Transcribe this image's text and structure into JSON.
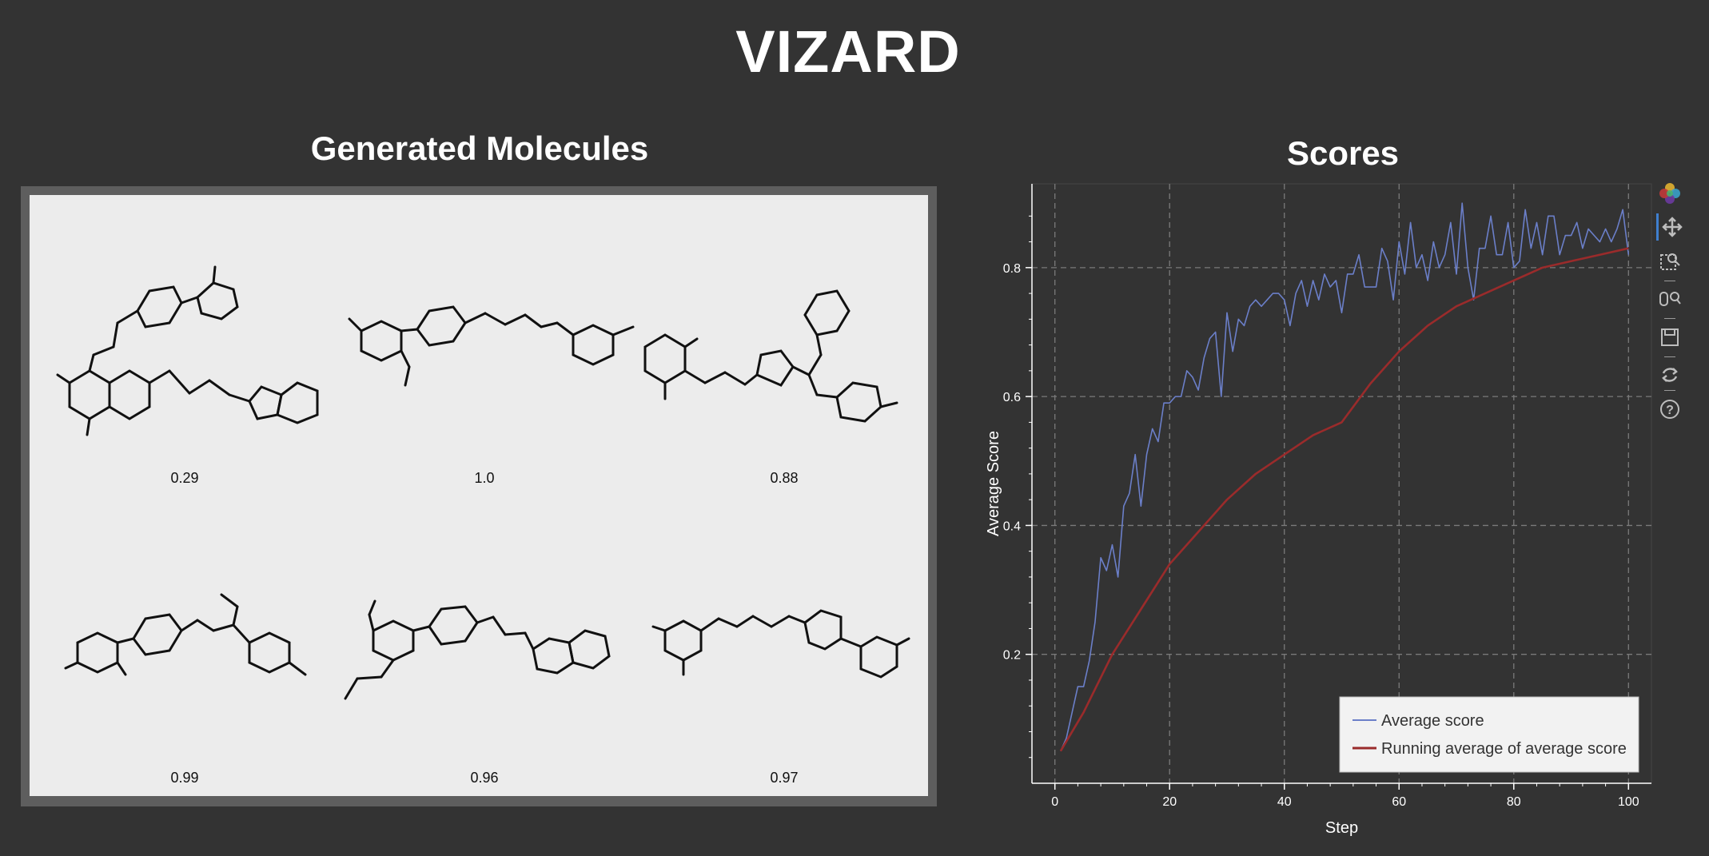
{
  "app": {
    "title": "VIZARD"
  },
  "molecules": {
    "title": "Generated Molecules",
    "scores": [
      "0.29",
      "1.0",
      "0.88",
      "0.99",
      "0.96",
      "0.97"
    ]
  },
  "scores_panel": {
    "title": "Scores"
  },
  "chart_data": {
    "type": "line",
    "title": "Scores",
    "xlabel": "Step",
    "ylabel": "Average Score",
    "xlim": [
      -4,
      104
    ],
    "ylim": [
      0,
      0.93
    ],
    "xticks": [
      0,
      20,
      40,
      60,
      80,
      100
    ],
    "yticks": [
      0.2,
      0.4,
      0.6,
      0.8
    ],
    "grid": true,
    "legend_position": "bottom-right",
    "series": [
      {
        "name": "Average score",
        "color": "#6b7fc9",
        "x": [
          1,
          2,
          3,
          4,
          5,
          6,
          7,
          8,
          9,
          10,
          11,
          12,
          13,
          14,
          15,
          16,
          17,
          18,
          19,
          20,
          21,
          22,
          23,
          24,
          25,
          26,
          27,
          28,
          29,
          30,
          31,
          32,
          33,
          34,
          35,
          36,
          37,
          38,
          39,
          40,
          41,
          42,
          43,
          44,
          45,
          46,
          47,
          48,
          49,
          50,
          51,
          52,
          53,
          54,
          55,
          56,
          57,
          58,
          59,
          60,
          61,
          62,
          63,
          64,
          65,
          66,
          67,
          68,
          69,
          70,
          71,
          72,
          73,
          74,
          75,
          76,
          77,
          78,
          79,
          80,
          81,
          82,
          83,
          84,
          85,
          86,
          87,
          88,
          89,
          90,
          91,
          92,
          93,
          94,
          95,
          96,
          97,
          98,
          99,
          100
        ],
        "y": [
          0.05,
          0.07,
          0.11,
          0.15,
          0.15,
          0.19,
          0.25,
          0.35,
          0.33,
          0.37,
          0.32,
          0.43,
          0.45,
          0.51,
          0.43,
          0.51,
          0.55,
          0.53,
          0.59,
          0.59,
          0.6,
          0.6,
          0.64,
          0.63,
          0.61,
          0.66,
          0.69,
          0.7,
          0.6,
          0.73,
          0.67,
          0.72,
          0.71,
          0.74,
          0.75,
          0.74,
          0.75,
          0.76,
          0.76,
          0.75,
          0.71,
          0.76,
          0.78,
          0.74,
          0.78,
          0.75,
          0.79,
          0.77,
          0.78,
          0.73,
          0.79,
          0.79,
          0.82,
          0.77,
          0.77,
          0.77,
          0.83,
          0.81,
          0.75,
          0.84,
          0.79,
          0.87,
          0.8,
          0.82,
          0.78,
          0.84,
          0.8,
          0.82,
          0.87,
          0.79,
          0.9,
          0.8,
          0.75,
          0.83,
          0.83,
          0.88,
          0.82,
          0.82,
          0.87,
          0.8,
          0.81,
          0.89,
          0.83,
          0.87,
          0.82,
          0.88,
          0.88,
          0.82,
          0.85,
          0.85,
          0.87,
          0.83,
          0.86,
          0.85,
          0.84,
          0.86,
          0.84,
          0.86,
          0.89,
          0.82
        ],
        "note": ""
      },
      {
        "name": "Running average of average score",
        "color": "#9a2b2b",
        "x": [
          1,
          5,
          10,
          15,
          20,
          25,
          30,
          35,
          40,
          45,
          50,
          55,
          60,
          65,
          70,
          75,
          80,
          85,
          90,
          95,
          100
        ],
        "y": [
          0.05,
          0.11,
          0.2,
          0.27,
          0.34,
          0.39,
          0.44,
          0.48,
          0.51,
          0.54,
          0.56,
          0.62,
          0.67,
          0.71,
          0.74,
          0.76,
          0.78,
          0.8,
          0.81,
          0.82,
          0.83
        ]
      }
    ]
  },
  "toolbar": {
    "tools": [
      "bokeh-logo-icon",
      "pan-icon",
      "box-zoom-icon",
      "wheel-zoom-icon",
      "save-icon",
      "reset-icon",
      "help-icon"
    ]
  }
}
